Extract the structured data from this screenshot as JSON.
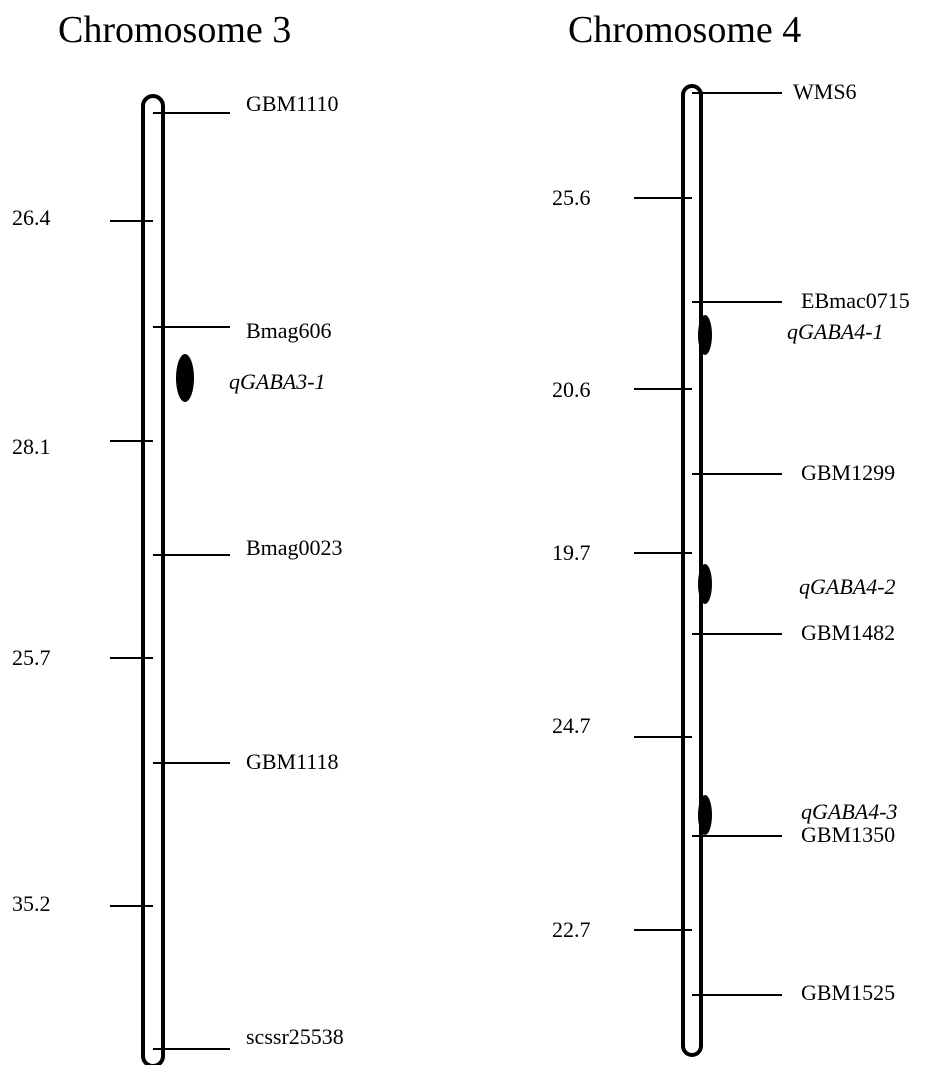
{
  "chromosomes": [
    {
      "title": "Chromosome 3",
      "markers": [
        "GBM1110",
        "Bmag606",
        "Bmag0023",
        "GBM1118",
        "scssr25538"
      ],
      "distances": [
        "26.4",
        "28.1",
        "25.7",
        "35.2"
      ],
      "qtls": [
        "qGABA3-1"
      ]
    },
    {
      "title": "Chromosome 4",
      "markers": [
        "WMS6",
        "EBmac0715",
        "GBM1299",
        "GBM1482",
        "GBM1350",
        "GBM1525"
      ],
      "distances": [
        "25.6",
        "20.6",
        "19.7",
        "24.7",
        "22.7"
      ],
      "qtls": [
        "qGABA4-1",
        "qGABA4-2",
        "qGABA4-3"
      ]
    }
  ]
}
